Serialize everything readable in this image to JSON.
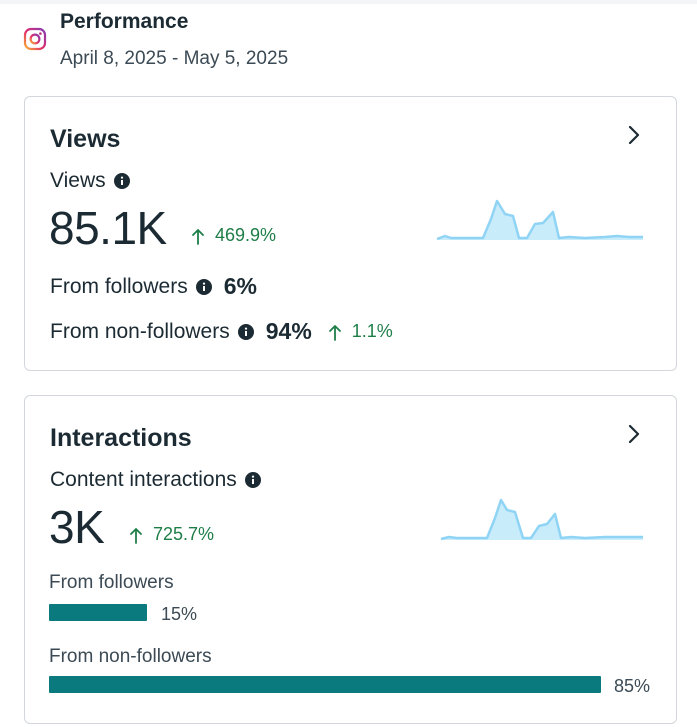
{
  "header": {
    "title": "Performance",
    "date_range": "April 8, 2025 - May 5, 2025",
    "platform_icon": "instagram-icon"
  },
  "views_card": {
    "title": "Views",
    "metric_label": "Views",
    "value": "85.1K",
    "delta": "469.9%",
    "from_followers_label": "From followers",
    "from_followers_pct": "6%",
    "from_non_followers_label": "From non-followers",
    "from_non_followers_pct": "94%",
    "from_non_followers_delta": "1.1%"
  },
  "interactions_card": {
    "title": "Interactions",
    "metric_label": "Content interactions",
    "value": "3K",
    "delta": "725.7%",
    "from_followers_label": "From followers",
    "from_followers_pct": "15%",
    "from_followers_fraction": 0.15,
    "from_non_followers_label": "From non-followers",
    "from_non_followers_pct": "85%",
    "from_non_followers_fraction": 0.85
  },
  "colors": {
    "positive": "#1e7e48",
    "bar": "#0b7a7e",
    "spark_line": "#90d4f5",
    "spark_fill": "#c9ecfb"
  }
}
